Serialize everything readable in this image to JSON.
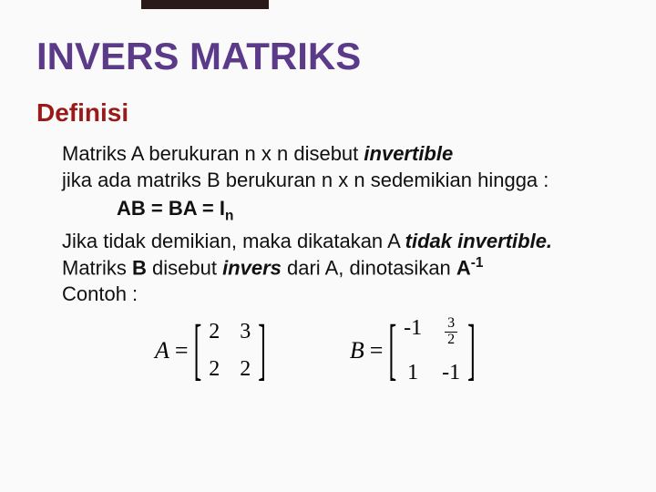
{
  "colors": {
    "title": "#5b3a8a",
    "subtitle": "#9a1a1a",
    "body": "#111111",
    "background": "#fafafa",
    "accent_border": "#606060",
    "dark_bar": "#2a1a1a"
  },
  "typography": {
    "title_fontsize": 42,
    "subtitle_fontsize": 28,
    "body_fontsize": 22,
    "math_fontsize": 26,
    "font_family_body": "Verdana",
    "font_family_math": "Times New Roman"
  },
  "title": "INVERS MATRIKS",
  "subtitle": "Definisi",
  "paragraph": {
    "line1_pre": "Matriks A berukuran n x n disebut ",
    "line1_em": "invertible",
    "line2": "jika ada matriks B berukuran n x n sedemikian hingga :",
    "formula": {
      "lhs": "AB = BA = I",
      "sub": "n"
    },
    "line3_pre": "Jika tidak demikian, maka dikatakan A ",
    "line3_em": "tidak invertible.",
    "line4_a": "Matriks ",
    "line4_b": "B",
    "line4_c": " disebut ",
    "line4_em": "invers",
    "line4_d": " dari A, dinotasikan ",
    "line4_e": "A",
    "line4_sup": "-1",
    "line5": "Contoh :"
  },
  "matrices": {
    "A": {
      "label": "A",
      "rows": [
        [
          "2",
          "3"
        ],
        [
          "2",
          "2"
        ]
      ]
    },
    "B": {
      "label": "B",
      "rows": [
        [
          "-1",
          {
            "frac": [
              "3",
              "2"
            ]
          }
        ],
        [
          "1",
          "-1"
        ]
      ]
    }
  }
}
